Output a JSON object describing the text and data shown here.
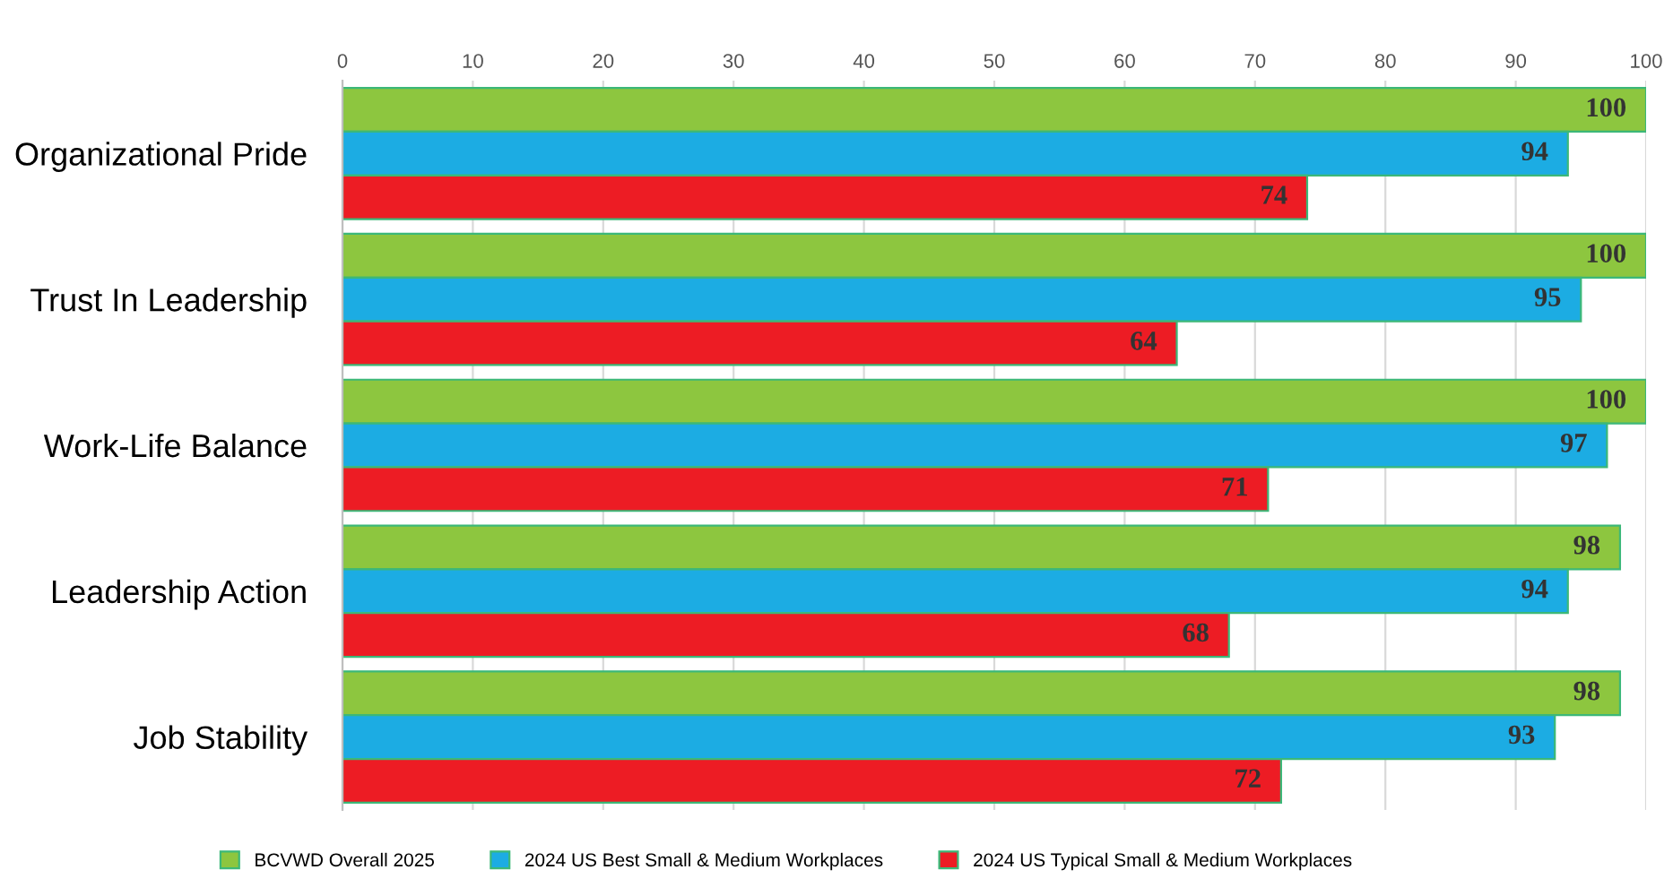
{
  "chart_data": {
    "type": "bar",
    "orientation": "horizontal",
    "categories": [
      "Organizational Pride",
      "Trust In Leadership",
      "Work-Life Balance",
      "Leadership Action",
      "Job Stability"
    ],
    "series": [
      {
        "name": "BCVWD Overall 2025",
        "color": "#8dc63f",
        "values": [
          100,
          100,
          100,
          98,
          98
        ]
      },
      {
        "name": "2024 US Best Small & Medium Workplaces",
        "color": "#1cace3",
        "values": [
          94,
          95,
          97,
          94,
          93
        ]
      },
      {
        "name": "2024 US Typical Small & Medium Workplaces",
        "color": "#ed1c24",
        "values": [
          74,
          64,
          71,
          68,
          72
        ]
      }
    ],
    "xlim": [
      0,
      100
    ],
    "xticks": [
      0,
      10,
      20,
      30,
      40,
      50,
      60,
      70,
      80,
      90,
      100
    ],
    "grid": "x",
    "legend": "bottom",
    "data_labels": true
  }
}
